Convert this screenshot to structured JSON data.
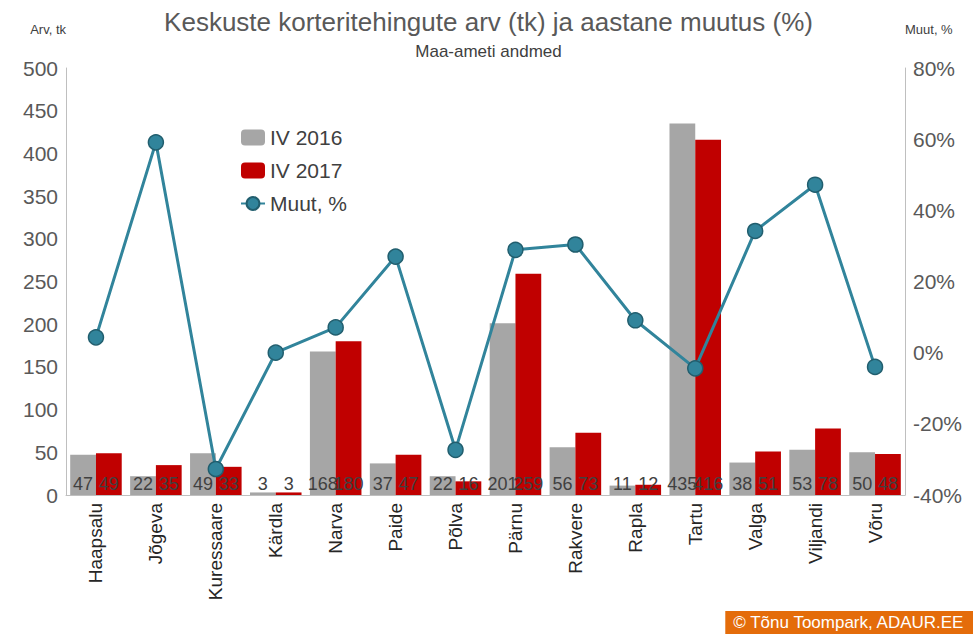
{
  "chart_data": {
    "type": "bar",
    "title": "Keskuste korteritehingute arv (tk) ja aastane muutus (%)",
    "subtitle": "Maa-ameti andmed",
    "y_label": "Arv, tk",
    "y2_label": "Muut, %",
    "annotations": [
      "© Tõnu Toompark, ADAUR.EE"
    ],
    "categories": [
      "Haapsalu",
      "Jõgeva",
      "Kuressaare",
      "Kärdla",
      "Narva",
      "Paide",
      "Põlva",
      "Pärnu",
      "Rakvere",
      "Rapla",
      "Tartu",
      "Valga",
      "Viljandi",
      "Võru"
    ],
    "series": [
      {
        "name": "IV 2016",
        "type": "bar",
        "color": "#a6a6a6",
        "values": [
          47,
          22,
          49,
          3,
          168,
          37,
          22,
          201,
          56,
          11,
          435,
          38,
          53,
          50
        ]
      },
      {
        "name": "IV 2017",
        "type": "bar",
        "color": "#c00000",
        "values": [
          49,
          35,
          33,
          3,
          180,
          47,
          16,
          259,
          73,
          12,
          416,
          51,
          78,
          48
        ]
      },
      {
        "name": "Muut, %",
        "type": "line",
        "axis": "y2",
        "color": "#31849b",
        "marker": "circle",
        "line_style": "solid",
        "values": [
          4.3,
          59.1,
          -32.7,
          0,
          7.1,
          27.0,
          -27.3,
          28.9,
          30.4,
          9.1,
          -4.4,
          34.2,
          47.2,
          -4.0
        ]
      }
    ],
    "ylim": [
      0,
      500
    ],
    "yticks": [
      0,
      50,
      100,
      150,
      200,
      250,
      300,
      350,
      400,
      450,
      500
    ],
    "y2lim": [
      -40,
      80
    ],
    "y2ticks": [
      {
        "value": -40,
        "label": "-40%"
      },
      {
        "value": -20,
        "label": "-20%"
      },
      {
        "value": 0,
        "label": "0%"
      },
      {
        "value": 20,
        "label": "20%"
      },
      {
        "value": 40,
        "label": "40%"
      },
      {
        "value": 60,
        "label": "60%"
      },
      {
        "value": 80,
        "label": "80%"
      }
    ],
    "data_labels": true,
    "legend": "upper left",
    "grid": false
  }
}
